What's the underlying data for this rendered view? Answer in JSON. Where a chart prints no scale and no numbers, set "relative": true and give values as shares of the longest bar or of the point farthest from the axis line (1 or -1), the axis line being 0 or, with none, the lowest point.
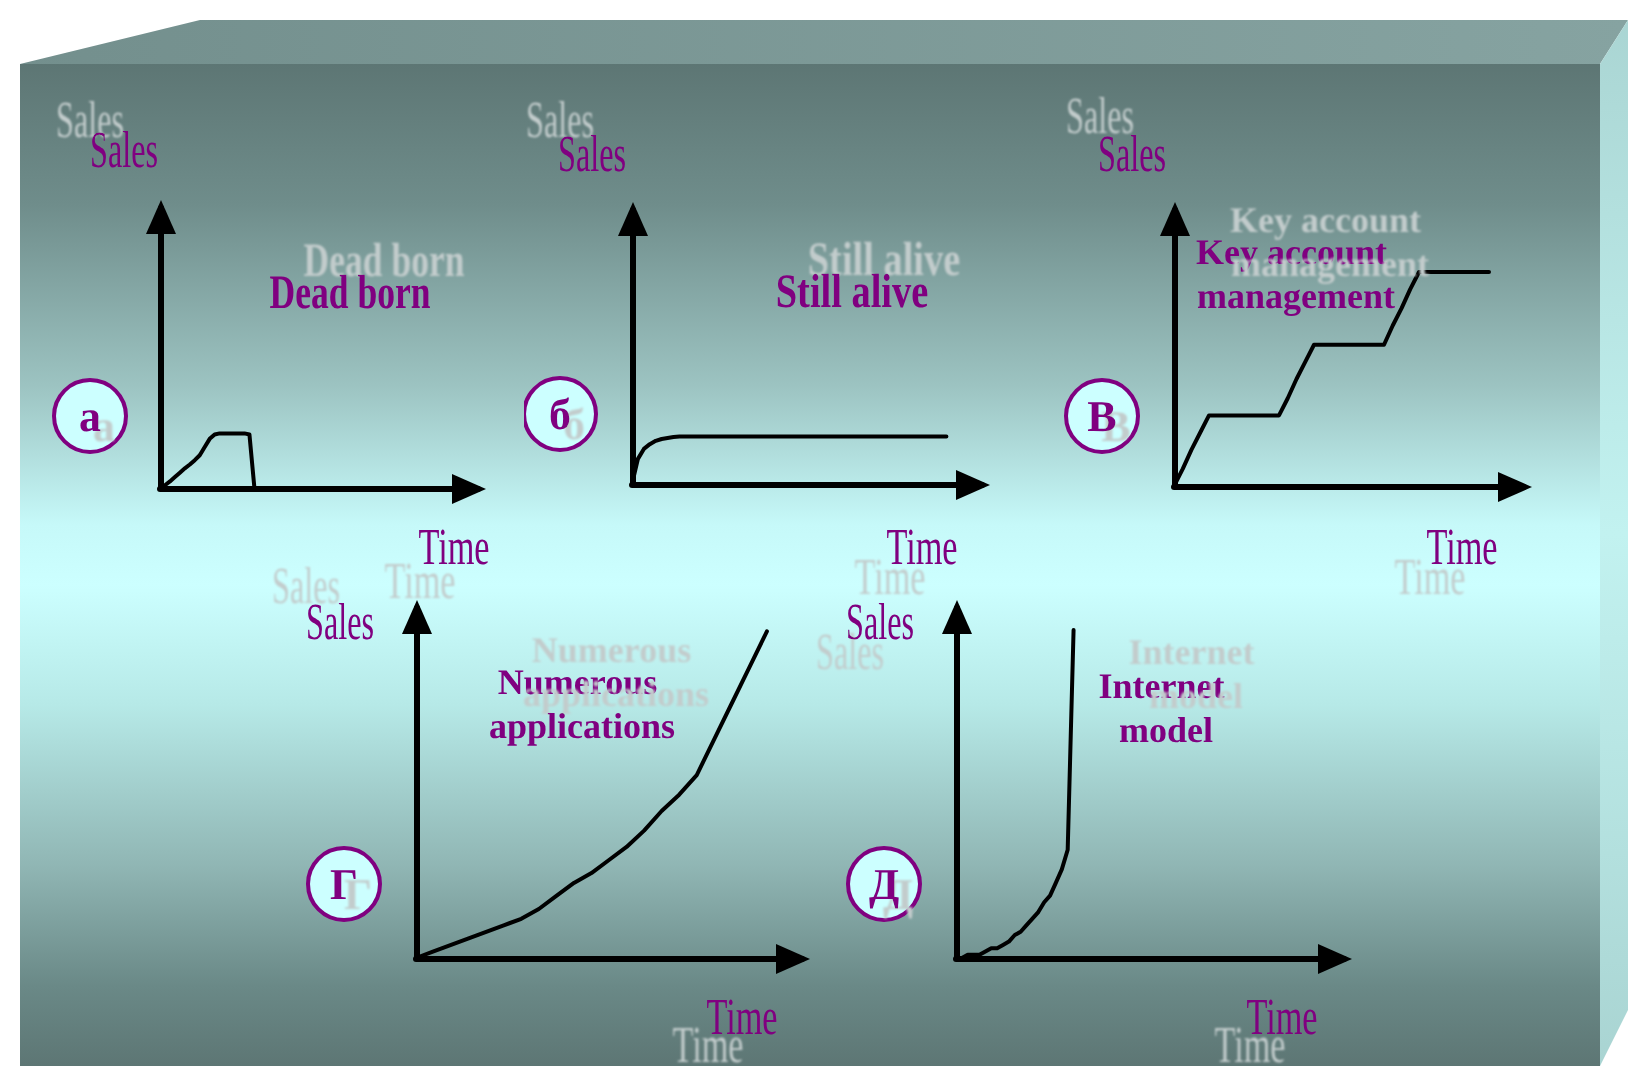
{
  "chart_data": [
    {
      "type": "line",
      "title": "Dead born",
      "xlabel": "Time",
      "ylabel": "Sales",
      "annotations": [
        "а"
      ],
      "relative": true,
      "color": "#000000",
      "categories": [
        null,
        null,
        null,
        null,
        null,
        null,
        null,
        null,
        null,
        null,
        null,
        null,
        null,
        null,
        null,
        null,
        null,
        null,
        null,
        null,
        null,
        null,
        null,
        null,
        null,
        null,
        null,
        null,
        null,
        null,
        null,
        null,
        null,
        null,
        null,
        null,
        null,
        null,
        null,
        null,
        null,
        null,
        null,
        null,
        null,
        null,
        null,
        null,
        null,
        null,
        null,
        null,
        null,
        null,
        null,
        null,
        null,
        null,
        null,
        null,
        null,
        null,
        null,
        null,
        null
      ],
      "values": [
        0,
        0.05,
        0.12,
        0.2,
        0.28,
        0.36,
        0.43,
        0.51,
        0.6,
        0.75,
        0.9,
        0.98,
        1,
        1,
        1,
        1,
        1,
        1,
        0.98,
        0,
        null,
        null,
        null,
        null,
        null,
        null,
        null,
        null,
        null,
        null,
        null,
        null,
        null,
        null,
        null,
        null,
        null,
        null,
        null,
        null,
        null,
        null,
        null,
        null,
        null,
        null,
        null,
        null,
        null,
        null,
        null,
        null,
        null,
        null,
        null,
        null,
        null,
        null,
        null,
        null,
        null,
        null,
        null,
        null,
        null
      ]
    },
    {
      "type": "line",
      "title": "Still alive",
      "xlabel": "Time",
      "ylabel": "Sales",
      "annotations": [
        "б"
      ],
      "relative": true,
      "color": "#000000",
      "categories": [
        null,
        null,
        null,
        null,
        null,
        null,
        null,
        null,
        null,
        null,
        null,
        null,
        null,
        null,
        null,
        null,
        null,
        null,
        null,
        null,
        null,
        null,
        null,
        null,
        null,
        null,
        null,
        null,
        null,
        null,
        null,
        null,
        null,
        null,
        null,
        null,
        null,
        null,
        null,
        null,
        null,
        null,
        null,
        null,
        null,
        null,
        null,
        null,
        null,
        null,
        null,
        null,
        null,
        null,
        null,
        null,
        null,
        null,
        null,
        null
      ],
      "values": [
        0,
        0.53,
        0.74,
        0.84,
        0.91,
        0.95,
        0.97,
        0.99,
        1,
        1,
        1,
        1,
        1,
        1,
        1,
        1,
        1,
        1,
        1,
        1,
        1,
        1,
        1,
        1,
        1,
        1,
        1,
        1,
        1,
        1,
        1,
        1,
        1,
        1,
        1,
        1,
        1,
        1,
        1,
        1,
        1,
        1,
        1,
        1,
        1,
        1,
        1,
        1,
        1,
        1,
        1,
        1,
        1,
        1,
        null,
        null,
        null,
        null,
        null,
        null
      ]
    },
    {
      "type": "line",
      "title": "Key account management",
      "xlabel": "Time",
      "ylabel": "Sales",
      "annotations": [
        "В"
      ],
      "relative": true,
      "color": "#000000",
      "categories": [
        null,
        null,
        null,
        null,
        null,
        null,
        null,
        null,
        null,
        null,
        null,
        null,
        null,
        null,
        null,
        null,
        null,
        null,
        null,
        null,
        null,
        null,
        null,
        null,
        null,
        null,
        null,
        null,
        null,
        null,
        null,
        null,
        null,
        null,
        null,
        null,
        null,
        null,
        null,
        null,
        null
      ],
      "values": [
        0,
        0.08,
        0.17,
        0.25,
        0.33,
        0.33,
        0.33,
        0.33,
        0.33,
        0.33,
        0.33,
        0.33,
        0.33,
        0.41,
        0.5,
        0.58,
        0.66,
        0.66,
        0.66,
        0.66,
        0.66,
        0.66,
        0.66,
        0.66,
        0.66,
        0.75,
        0.83,
        0.92,
        1,
        1,
        1,
        1,
        1,
        1,
        1,
        1,
        1,
        null,
        null,
        null,
        null
      ]
    },
    {
      "type": "line",
      "title": "Numerous applications",
      "xlabel": "Time",
      "ylabel": "Sales",
      "annotations": [
        "Г"
      ],
      "relative": true,
      "color": "#000000",
      "categories": [
        null,
        null,
        null,
        null,
        null,
        null,
        null,
        null,
        null,
        null,
        null,
        null,
        null,
        null,
        null,
        null,
        null,
        null,
        null,
        null,
        null,
        null,
        null
      ],
      "values": [
        0,
        0.02,
        0.04,
        0.06,
        0.08,
        0.1,
        0.12,
        0.15,
        0.19,
        0.23,
        0.26,
        0.3,
        0.34,
        0.39,
        0.45,
        0.5,
        0.56,
        0.67,
        0.78,
        0.89,
        1,
        null,
        null
      ]
    },
    {
      "type": "line",
      "title": "Internet model",
      "xlabel": "Time",
      "ylabel": "Sales",
      "annotations": [
        "Д"
      ],
      "relative": true,
      "color": "#000000",
      "categories": [
        null,
        null,
        null,
        null,
        null,
        null,
        null,
        null,
        null,
        null,
        null,
        null,
        null,
        null,
        null,
        null,
        null,
        null,
        null,
        null,
        null,
        null,
        null,
        null,
        null,
        null,
        null,
        null,
        null,
        null,
        null,
        null,
        null,
        null,
        null,
        null,
        null,
        null,
        null,
        null,
        null,
        null,
        null,
        null,
        null,
        null,
        null,
        null,
        null,
        null,
        null,
        null,
        null,
        null,
        null,
        null,
        null,
        null,
        null,
        null,
        null,
        null,
        null,
        null,
        null,
        null,
        null
      ],
      "values": [
        0,
        0,
        0.01,
        0.01,
        0.01,
        0.02,
        0.03,
        0.03,
        0.04,
        0.05,
        0.07,
        0.08,
        0.1,
        0.12,
        0.14,
        0.17,
        0.19,
        0.23,
        0.27,
        0.33,
        1,
        null,
        null,
        null,
        null,
        null,
        null,
        null,
        null,
        null,
        null,
        null,
        null,
        null,
        null,
        null,
        null,
        null,
        null,
        null,
        null,
        null,
        null,
        null,
        null,
        null,
        null,
        null,
        null,
        null,
        null,
        null,
        null,
        null,
        null,
        null,
        null,
        null,
        null,
        null,
        null,
        null,
        null,
        null,
        null,
        null,
        null
      ]
    }
  ]
}
